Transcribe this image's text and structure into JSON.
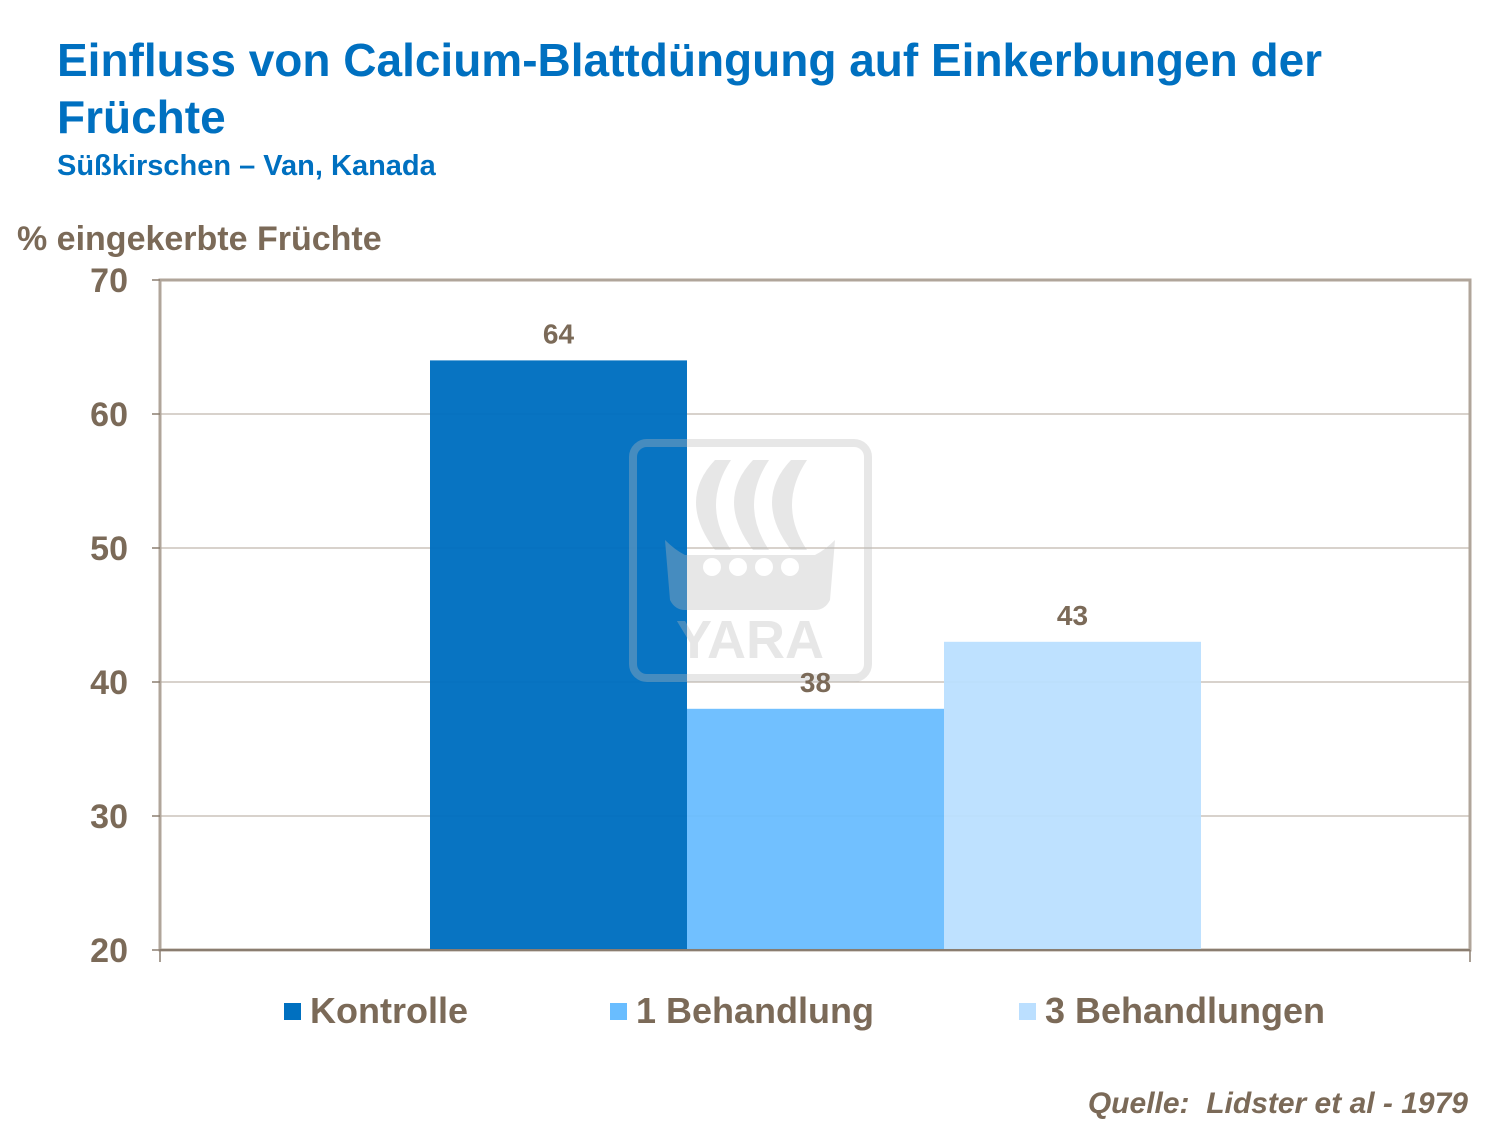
{
  "title": "Einfluss von Calcium-Blattdüngung auf Einkerbungen der Früchte",
  "subtitle": "Süßkirschen – Van, Kanada",
  "source": "Quelle:  Lidster et al - 1979",
  "watermark": "YARA",
  "chart_data": {
    "type": "bar",
    "ylabel": "% eingekerbte Früchte",
    "ylim": [
      20,
      70
    ],
    "yticks": [
      20,
      30,
      40,
      50,
      60,
      70
    ],
    "grid": true,
    "legend_position": "bottom",
    "series": [
      {
        "name": "Kontrolle",
        "value": 64,
        "color": "#0070c0"
      },
      {
        "name": "1 Behandlung",
        "value": 38,
        "color": "#69bdff"
      },
      {
        "name": "3 Behandlungen",
        "value": 43,
        "color": "#bbdfff"
      }
    ]
  }
}
